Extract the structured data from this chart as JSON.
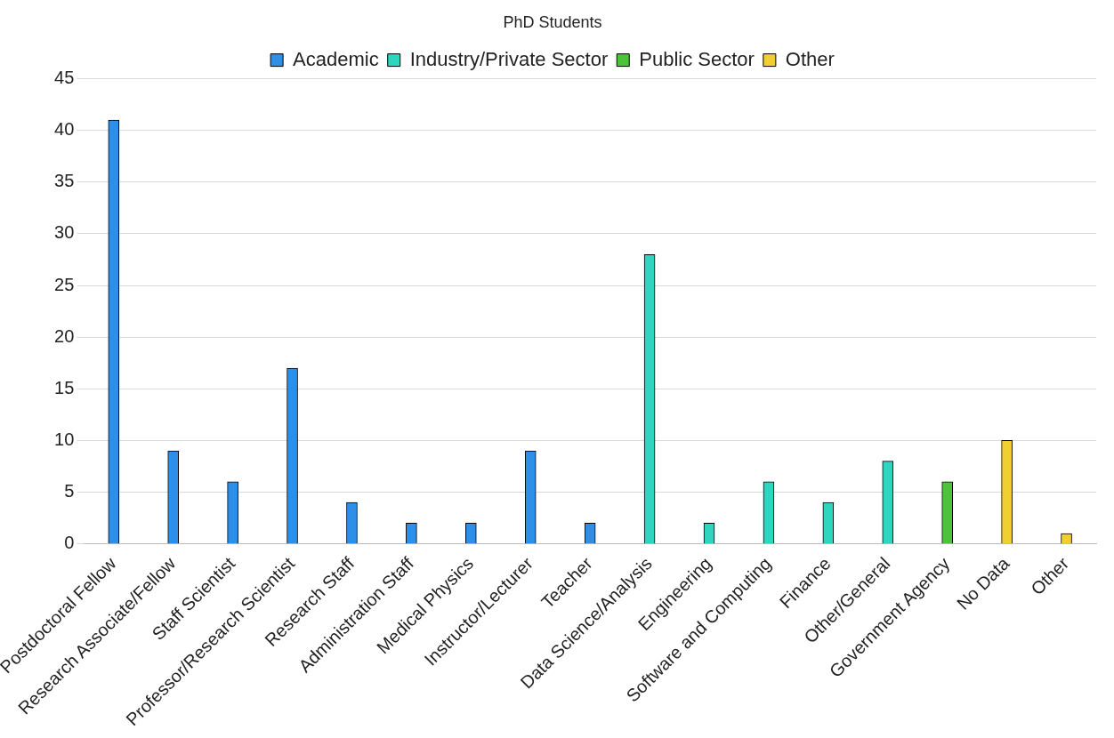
{
  "chart_data": {
    "type": "bar",
    "title": "PhD Students",
    "categories": [
      "Postdoctoral Fellow",
      "Research Associate/Fellow",
      "Staff Scientist",
      "Professor/Research Scientist",
      "Research Staff",
      "Administration Staff",
      "Medical Physics",
      "Instructor/Lecturer",
      "Teacher",
      "Data Science/Analysis",
      "Engineering",
      "Software and Computing",
      "Finance",
      "Other/General",
      "Government Agency",
      "No Data",
      "Other"
    ],
    "series": [
      {
        "name": "Academic",
        "color": "#2e8fe8",
        "values": [
          41,
          9,
          6,
          17,
          4,
          2,
          2,
          9,
          2,
          null,
          null,
          null,
          null,
          null,
          null,
          null,
          null
        ]
      },
      {
        "name": "Industry/Private Sector",
        "color": "#2ed6c0",
        "values": [
          null,
          null,
          null,
          null,
          null,
          null,
          null,
          null,
          null,
          28,
          2,
          6,
          4,
          8,
          null,
          null,
          null
        ]
      },
      {
        "name": "Public Sector",
        "color": "#4cc43a",
        "values": [
          null,
          null,
          null,
          null,
          null,
          null,
          null,
          null,
          null,
          null,
          null,
          null,
          null,
          null,
          6,
          null,
          null
        ]
      },
      {
        "name": "Other",
        "color": "#f2cf30",
        "values": [
          null,
          null,
          null,
          null,
          null,
          null,
          null,
          null,
          null,
          null,
          null,
          null,
          null,
          null,
          null,
          10,
          1
        ]
      }
    ],
    "ylim": [
      0,
      45
    ],
    "yticks": [
      0,
      5,
      10,
      15,
      20,
      25,
      30,
      35,
      40,
      45
    ],
    "grid": "y",
    "legend": "top"
  }
}
